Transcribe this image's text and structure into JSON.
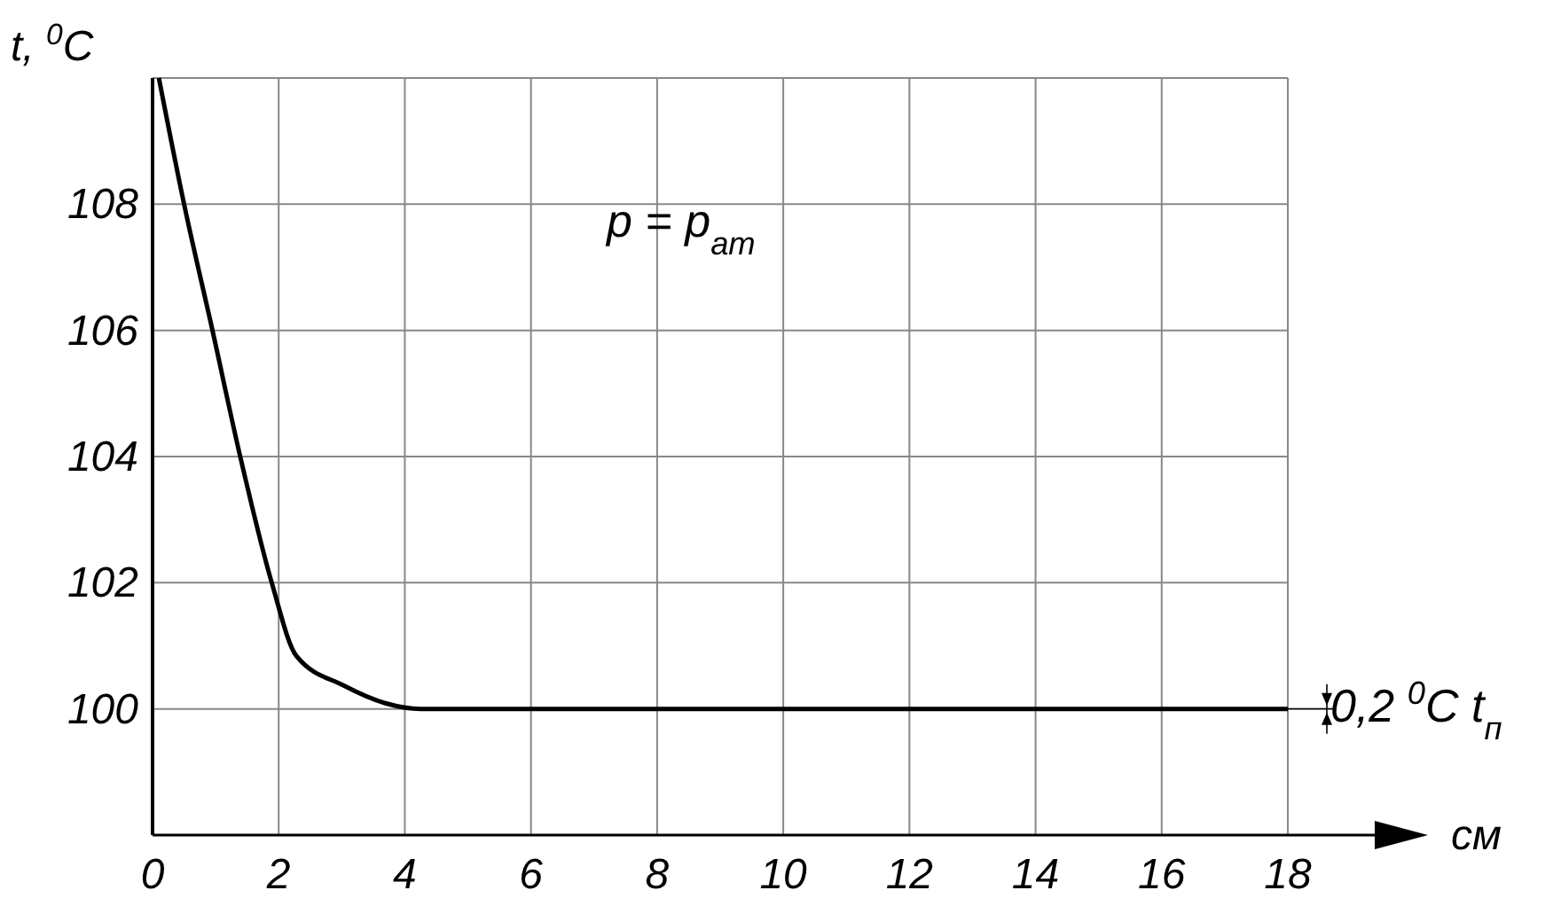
{
  "chart_data": {
    "type": "line",
    "xlabel": "см",
    "ylabel": "t, $^{0}$C",
    "x": [
      0.1,
      0.5,
      0.95,
      1.39,
      1.89,
      2.28,
      3.03,
      3.69,
      4.25,
      6,
      8,
      10,
      12,
      14,
      16,
      18
    ],
    "series": [
      {
        "color": "#000000",
        "values": [
          110,
          108,
          106,
          104,
          102,
          100.84,
          100.37,
          100.09,
          100,
          100,
          100,
          100,
          100,
          100,
          100,
          100
        ]
      }
    ],
    "xlim": [
      0,
      18
    ],
    "xticks": [
      0,
      2,
      4,
      6,
      8,
      10,
      12,
      14,
      16,
      18
    ],
    "ylim": [
      98,
      110
    ],
    "yticks": [
      100,
      102,
      104,
      106,
      108,
      {
        "value": 110,
        "label": null
      }
    ],
    "grid": true,
    "marker": "none",
    "line_style": "solid",
    "annotations": [
      "p = p$_{ат}$",
      "0,2 $^{0}$C t$_{п}$"
    ]
  }
}
